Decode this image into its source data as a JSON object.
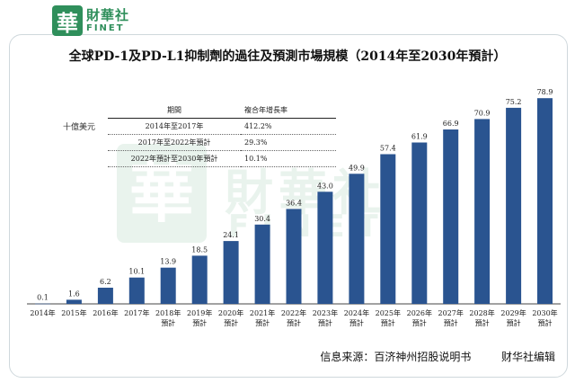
{
  "brand": {
    "logo_char": "華",
    "cn": "財華社",
    "en": "FINET"
  },
  "colors": {
    "bar": "#2a5490",
    "brand": "#2f8f5b"
  },
  "chart_data": {
    "type": "bar",
    "title": "全球PD-1及PD-L1抑制劑的過往及預測市場規模（2014年至2030年預計）",
    "ylabel": "十億美元",
    "ylim": [
      0,
      80
    ],
    "categories": [
      "2014年",
      "2015年",
      "2016年",
      "2017年",
      "2018年\n預計",
      "2019年\n預計",
      "2020年\n預計",
      "2021年\n預計",
      "2022年\n預計",
      "2023年\n預計",
      "2024年\n預計",
      "2025年\n預計",
      "2026年\n預計",
      "2027年\n預計",
      "2028年\n預計",
      "2029年\n預計",
      "2030年\n預計"
    ],
    "series": [
      {
        "values": [
          0.1,
          1.6,
          6.2,
          10.1,
          13.9,
          18.5,
          24.1,
          30.4,
          36.4,
          43.0,
          49.9,
          57.4,
          61.9,
          66.9,
          70.9,
          75.2,
          78.9
        ]
      }
    ],
    "value_labels": [
      "0.1",
      "1.6",
      "6.2",
      "10.1",
      "13.9",
      "18.5",
      "24.1",
      "30.4",
      "36.4",
      "43.0",
      "49.9",
      "57.4",
      "61.9",
      "66.9",
      "70.9",
      "75.2",
      "78.9"
    ],
    "cagr_table": {
      "headers": [
        "期間",
        "複合年增長率"
      ],
      "rows": [
        [
          "2014年至2017年",
          "412.2%"
        ],
        [
          "2017年至2022年預計",
          "29.3%"
        ],
        [
          "2022年預計至2030年預計",
          "10.1%"
        ]
      ]
    }
  },
  "footer": {
    "source": "信息来源：百济神州招股说明书",
    "editor": "财华社编辑"
  }
}
